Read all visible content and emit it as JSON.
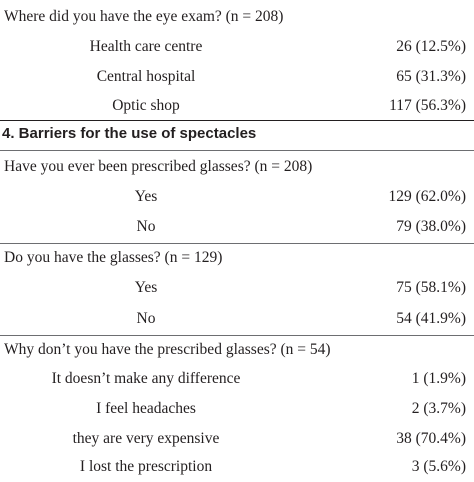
{
  "blocks": {
    "exam_location": {
      "question": "Where did you have the eye exam? (n = 208)",
      "rows": [
        {
          "label": "Health care centre",
          "value": "26 (12.5%)"
        },
        {
          "label": "Central hospital",
          "value": "65 (31.3%)"
        },
        {
          "label": "Optic shop",
          "value": "117 (56.3%)"
        }
      ]
    },
    "section_title": "4. Barriers for the use of spectacles",
    "prescribed": {
      "question": "Have you ever been prescribed glasses? (n = 208)",
      "rows": [
        {
          "label": "Yes",
          "value": "129 (62.0%)"
        },
        {
          "label": "No",
          "value": "79 (38.0%)"
        }
      ]
    },
    "have_glasses": {
      "question": "Do you have the glasses? (n = 129)",
      "rows": [
        {
          "label": "Yes",
          "value": "75 (58.1%)"
        },
        {
          "label": "No",
          "value": "54 (41.9%)"
        }
      ]
    },
    "why_not": {
      "question": "Why don’t you have the prescribed glasses? (n = 54)",
      "rows": [
        {
          "label": "It doesn’t make any difference",
          "value": "1 (1.9%)"
        },
        {
          "label": "I feel headaches",
          "value": "2 (3.7%)"
        },
        {
          "label": "they are very expensive",
          "value": "38 (70.4%)"
        },
        {
          "label": "I lost the prescription",
          "value": "3 (5.6%)"
        }
      ]
    }
  }
}
